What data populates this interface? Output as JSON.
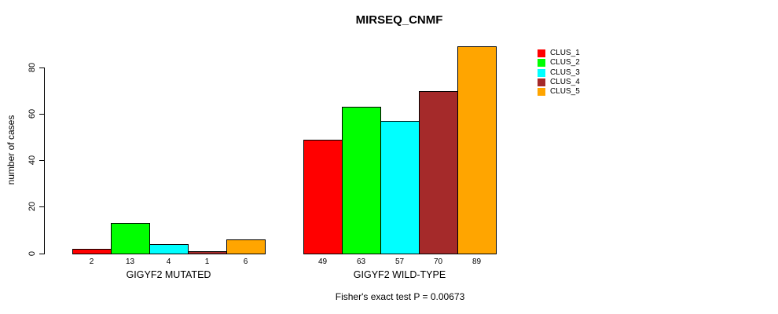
{
  "title": "MIRSEQ_CNMF",
  "caption": "Fisher's exact test P = 0.00673",
  "chart_data": {
    "type": "bar",
    "title": "MIRSEQ_CNMF",
    "xlabel": "",
    "ylabel": "number of cases",
    "ylim": [
      0,
      89
    ],
    "y_ticks": [
      0,
      20,
      40,
      60,
      80
    ],
    "grid": false,
    "legend_position": "top-right",
    "categories": [
      "GIGYF2 MUTATED",
      "GIGYF2 WILD-TYPE"
    ],
    "series": [
      {
        "name": "CLUS_1",
        "color": "#ff0000",
        "values": [
          2,
          49
        ]
      },
      {
        "name": "CLUS_2",
        "color": "#00ff00",
        "values": [
          13,
          63
        ]
      },
      {
        "name": "CLUS_3",
        "color": "#00ffff",
        "values": [
          4,
          57
        ]
      },
      {
        "name": "CLUS_4",
        "color": "#a52a2a",
        "values": [
          1,
          70
        ]
      },
      {
        "name": "CLUS_5",
        "color": "#ffa500",
        "values": [
          6,
          89
        ]
      }
    ],
    "bar_value_labels": [
      [
        2,
        13,
        4,
        1,
        6
      ],
      [
        49,
        63,
        57,
        70,
        89
      ]
    ],
    "annotation": "Fisher's exact test P = 0.00673"
  }
}
